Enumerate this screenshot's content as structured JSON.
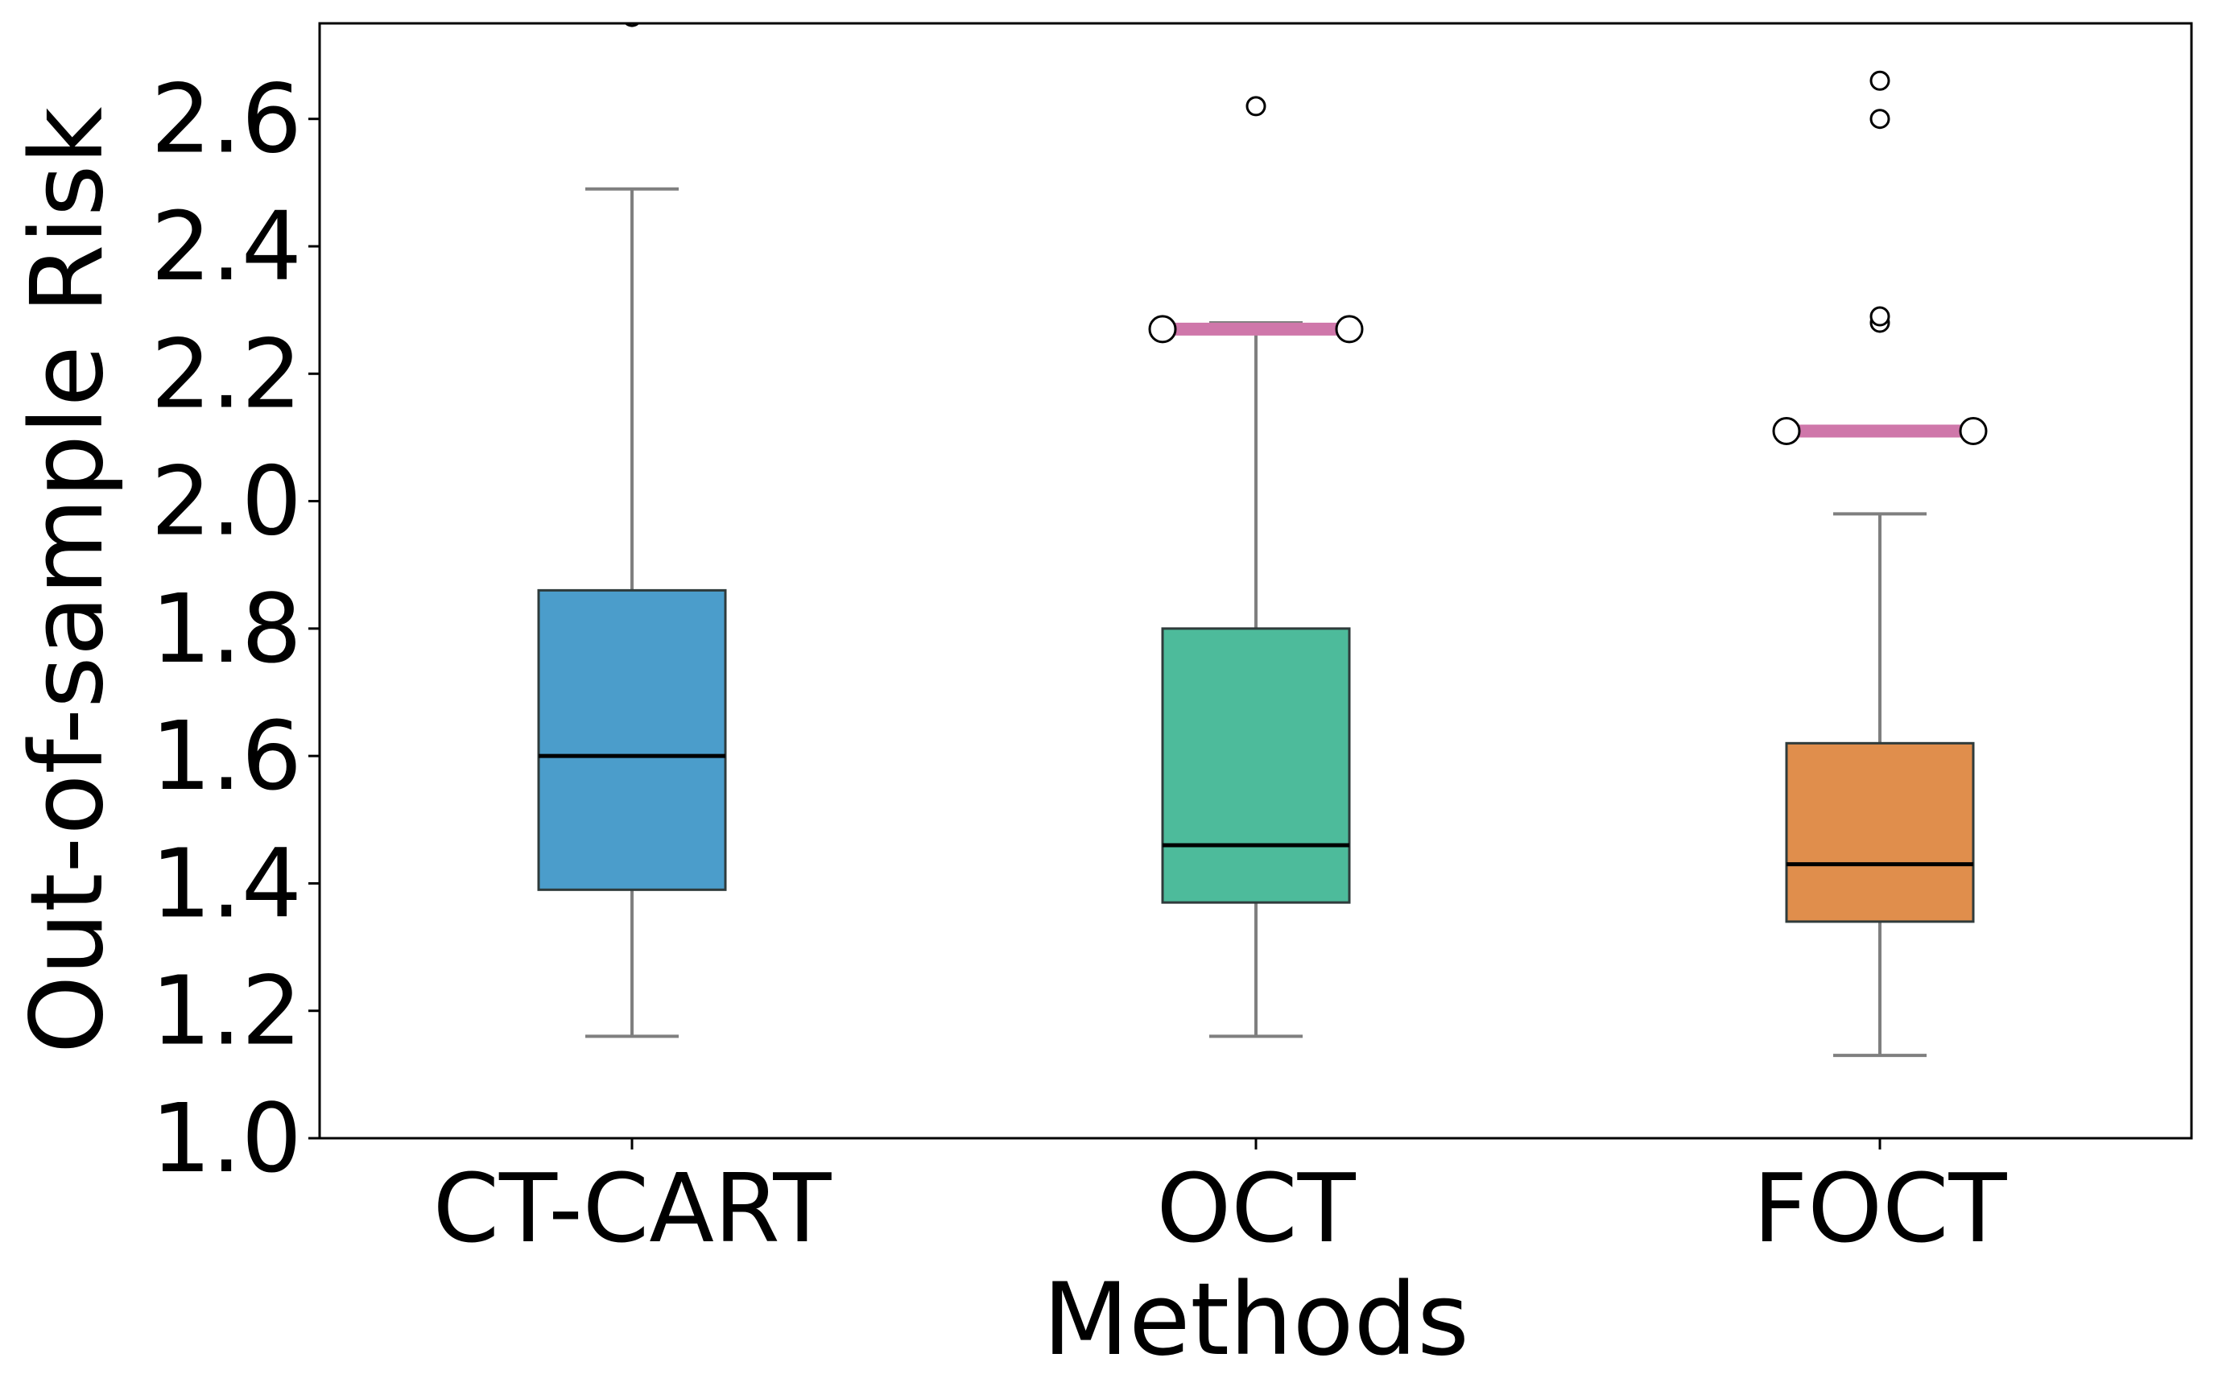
{
  "chart_data": {
    "type": "box",
    "title": "",
    "xlabel": "Methods",
    "ylabel": "Out-of-sample Risk",
    "ylim": [
      1.0,
      2.75
    ],
    "yticks": [
      "1.0",
      "1.2",
      "1.4",
      "1.6",
      "1.8",
      "2.0",
      "2.2",
      "2.4",
      "2.6"
    ],
    "yticks_values": [
      1.0,
      1.2,
      1.4,
      1.6,
      1.8,
      2.0,
      2.2,
      2.4,
      2.6
    ],
    "grid": false,
    "categories": [
      "CT-CART",
      "OCT",
      "FOCT"
    ],
    "boxes": [
      {
        "name": "CT-CART",
        "color": "#4b9dcb",
        "whisker_low": 1.16,
        "q1": 1.39,
        "median": 1.6,
        "q3": 1.86,
        "whisker_high": 2.49,
        "outliers": [
          2.76
        ],
        "highlight": null
      },
      {
        "name": "OCT",
        "color": "#4dbb9b",
        "whisker_low": 1.16,
        "q1": 1.37,
        "median": 1.46,
        "q3": 1.8,
        "whisker_high": 2.28,
        "outliers": [
          2.62
        ],
        "highlight": 2.27
      },
      {
        "name": "FOCT",
        "color": "#e08e4c",
        "whisker_low": 1.13,
        "q1": 1.34,
        "median": 1.43,
        "q3": 1.62,
        "whisker_high": 1.98,
        "outliers": [
          2.28,
          2.29,
          2.6,
          2.66
        ],
        "highlight": 2.11
      }
    ],
    "highlight_color": "#cf77aa",
    "whisker_color": "#7f7f7f",
    "median_color": "#000000",
    "box_edge_color": "#2f3b3b"
  }
}
